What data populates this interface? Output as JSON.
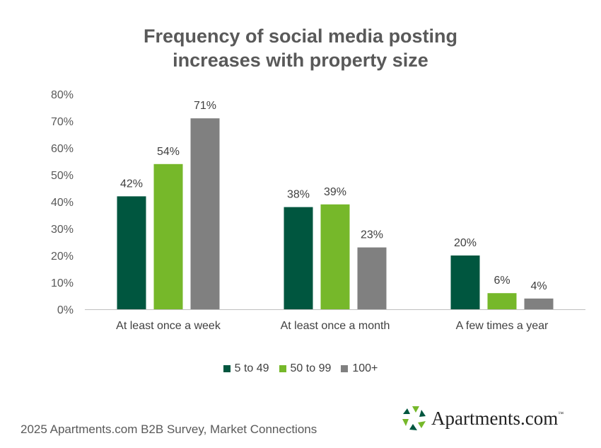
{
  "chart_data": {
    "type": "bar",
    "title_lines": [
      "Frequency of social media posting",
      "increases with property size"
    ],
    "categories": [
      "At least once a week",
      "At least once a month",
      "A few times a year"
    ],
    "series": [
      {
        "name": "5 to 49",
        "color": "#00563f",
        "values": [
          42,
          38,
          20
        ]
      },
      {
        "name": "50 to 99",
        "color": "#76b82a",
        "values": [
          54,
          39,
          6
        ]
      },
      {
        "name": "100+",
        "color": "#808080",
        "values": [
          71,
          23,
          4
        ]
      }
    ],
    "ylim": [
      0,
      80
    ],
    "yticks": [
      "0%",
      "10%",
      "20%",
      "30%",
      "40%",
      "50%",
      "60%",
      "70%",
      "80%"
    ],
    "value_suffix": "%",
    "legend_position": "bottom",
    "grid": false
  },
  "footer": {
    "source": "2025 Apartments.com B2B Survey, Market Connections",
    "logo_text": "Apartments.com",
    "logo_tm": "™"
  }
}
